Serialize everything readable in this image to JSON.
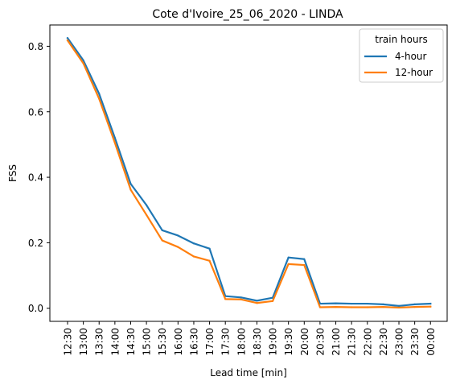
{
  "chart_data": {
    "type": "line",
    "title": "Cote d'Ivoire_25_06_2020 - LINDA",
    "xlabel": "Lead time [min]",
    "ylabel": "FSS",
    "categories": [
      "12:30",
      "13:00",
      "13:30",
      "14:00",
      "14:30",
      "15:00",
      "15:30",
      "16:00",
      "16:30",
      "17:00",
      "17:30",
      "18:00",
      "18:30",
      "19:00",
      "19:30",
      "20:00",
      "20:30",
      "21:00",
      "21:30",
      "22:00",
      "22:30",
      "23:00",
      "23:30",
      "00:00"
    ],
    "yticks": [
      0.0,
      0.2,
      0.4,
      0.6,
      0.8
    ],
    "ytick_labels": [
      "0.0",
      "0.2",
      "0.4",
      "0.6",
      "0.8"
    ],
    "ylim": [
      -0.04,
      0.865
    ],
    "grid": false,
    "legend": {
      "title": "train hours",
      "placement": "top-right"
    },
    "series": [
      {
        "name": "4-hour",
        "color": "#1f77b4",
        "values": [
          0.825,
          0.757,
          0.655,
          0.52,
          0.38,
          0.315,
          0.238,
          0.222,
          0.198,
          0.182,
          0.037,
          0.033,
          0.023,
          0.032,
          0.155,
          0.15,
          0.014,
          0.015,
          0.014,
          0.014,
          0.012,
          0.007,
          0.012,
          0.014
        ]
      },
      {
        "name": "12-hour",
        "color": "#ff7f0e",
        "values": [
          0.818,
          0.748,
          0.64,
          0.505,
          0.362,
          0.285,
          0.207,
          0.187,
          0.158,
          0.145,
          0.028,
          0.027,
          0.016,
          0.022,
          0.135,
          0.132,
          0.003,
          0.004,
          0.003,
          0.003,
          0.004,
          0.002,
          0.004,
          0.005
        ]
      }
    ]
  }
}
